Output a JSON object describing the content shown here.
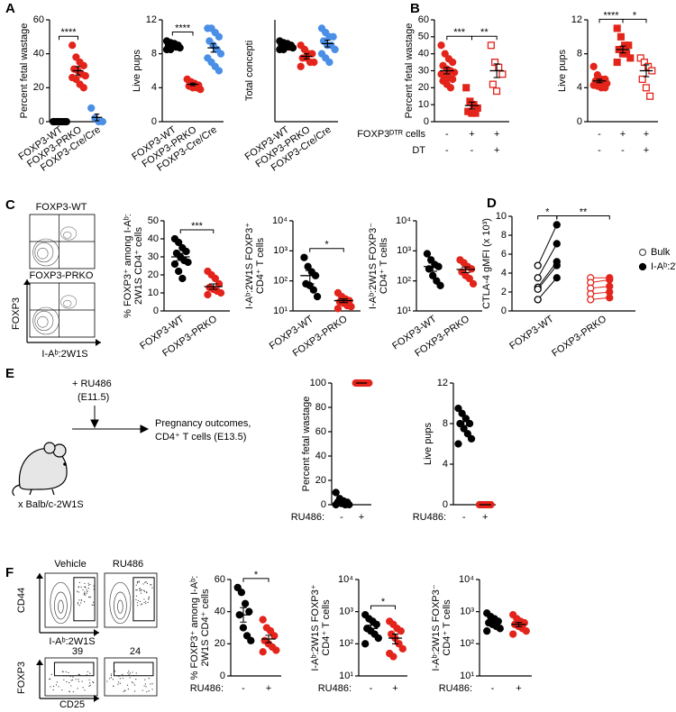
{
  "panel_letters": [
    "A",
    "B",
    "C",
    "D",
    "E",
    "F"
  ],
  "flow_c": {
    "titles": [
      "FOXP3-WT",
      "FOXP3-PRKO"
    ],
    "y_axis": "FOXP3",
    "x_axis": "I-Aᵇ:2W1S"
  },
  "schematic_e": {
    "treatment": "+ RU486",
    "treatment_time": "(E11.5)",
    "outcome": [
      "Pregnancy outcomes,",
      "CD4⁺ T cells (E13.5)"
    ],
    "cross": "x Balb/c-2W1S"
  },
  "flow_f": {
    "titles": [
      "Vehicle",
      "RU486"
    ],
    "top_y": "CD44",
    "top_x": "I-Aᵇ:2W1S",
    "bottom_y": "FOXP3",
    "bottom_x": "CD25",
    "gate_percents": [
      39,
      24
    ]
  },
  "chart_data": [
    {
      "type": "dot",
      "ylabel": [
        "Percent fetal wastage"
      ],
      "ylim": [
        0,
        60
      ],
      "yticks": [
        0,
        20,
        40,
        60
      ],
      "categories": [
        "FOXP3-WT",
        "FOXP3-PRKO",
        "FOXP3-Cre/Cre"
      ],
      "colors": [
        "#000000",
        "#e3241b",
        "#4a8fe7"
      ],
      "markers": [
        "circle",
        "circle",
        "circle"
      ],
      "values": [
        [
          0,
          0,
          0,
          0,
          0,
          0,
          0,
          0,
          0,
          0
        ],
        [
          45,
          38,
          35,
          33,
          31,
          30,
          28,
          27,
          26,
          25,
          22,
          20
        ],
        [
          8,
          2,
          0,
          0
        ]
      ],
      "means": [
        0,
        30,
        2.5
      ],
      "sems": [
        0,
        2.5,
        2
      ],
      "significance": [
        {
          "from": 0,
          "to": 1,
          "label": "****"
        }
      ]
    },
    {
      "type": "dot",
      "ylabel": [
        "Live pups"
      ],
      "ylim": [
        0,
        12
      ],
      "yticks": [
        0,
        4,
        8,
        12
      ],
      "categories": [
        "FOXP3-WT",
        "FOXP3-PRKO",
        "FOXP3-Cre/Cre"
      ],
      "colors": [
        "#000000",
        "#e3241b",
        "#4a8fe7"
      ],
      "markers": [
        "circle",
        "circle",
        "circle"
      ],
      "values": [
        [
          9.5,
          9.3,
          9.2,
          9,
          9,
          9,
          8.8,
          8.7,
          8.5,
          8.5
        ],
        [
          5,
          4.7,
          4.5,
          4.3,
          4.2,
          4,
          4,
          3.8
        ],
        [
          11,
          11,
          10.5,
          10,
          9.5,
          9,
          8.5,
          8,
          7.5,
          7,
          6.5,
          6
        ]
      ],
      "means": [
        9,
        4.4,
        8.7
      ],
      "sems": [
        0.1,
        0.15,
        0.5
      ],
      "significance": [
        {
          "from": 0,
          "to": 1,
          "label": "****"
        }
      ]
    },
    {
      "type": "dot",
      "ylabel": [
        "Total concepti"
      ],
      "ylim": [
        0,
        12
      ],
      "categories": [
        "FOXP3-WT",
        "FOXP3-PRKO",
        "FOXP3-Cre/Cre"
      ],
      "colors": [
        "#000000",
        "#e3241b",
        "#4a8fe7"
      ],
      "markers": [
        "circle",
        "circle",
        "circle"
      ],
      "values": [
        [
          9.5,
          9.3,
          9.2,
          9,
          9,
          9,
          8.8,
          8.7,
          8.5,
          8.5
        ],
        [
          9,
          8.5,
          8,
          8,
          7.5,
          7.5,
          7,
          7,
          6.5
        ],
        [
          11,
          10.5,
          10,
          10,
          9.5,
          9,
          9,
          8.5,
          8,
          7.5,
          7
        ]
      ],
      "means": [
        9,
        7.7,
        9.2
      ],
      "sems": [
        0.1,
        0.3,
        0.4
      ]
    },
    {
      "type": "dot",
      "ylabel": [
        "Percent fetal wastage"
      ],
      "ylim": [
        0,
        60
      ],
      "yticks": [
        0,
        10,
        20,
        30,
        40,
        50,
        60
      ],
      "x_rows": [
        {
          "label": "FOXP3ᴰᵀᴿ cells",
          "values": [
            "-",
            "+",
            "+"
          ]
        },
        {
          "label": "DT",
          "values": [
            "-",
            "-",
            "+"
          ]
        }
      ],
      "colors": [
        "#e3241b",
        "#e3241b",
        "#e3241b"
      ],
      "markers": [
        "circle",
        "square",
        "open-square"
      ],
      "values": [
        [
          45,
          40,
          37,
          35,
          33,
          31,
          30,
          29,
          28,
          27,
          26,
          25,
          24,
          22,
          20
        ],
        [
          20,
          12,
          10,
          8,
          6,
          5,
          5
        ],
        [
          45,
          35,
          32,
          28,
          22,
          18
        ]
      ],
      "means": [
        30,
        9.5,
        30
      ],
      "sems": [
        1.8,
        2,
        4
      ],
      "significance": [
        {
          "from": 0,
          "to": 1,
          "label": "***"
        },
        {
          "from": 1,
          "to": 2,
          "label": "**"
        }
      ]
    },
    {
      "type": "dot",
      "ylabel": [
        "Live pups"
      ],
      "ylim": [
        0,
        12
      ],
      "yticks": [
        0,
        4,
        8,
        12
      ],
      "x_rows": [
        {
          "values": [
            "-",
            "+",
            "+"
          ]
        },
        {
          "values": [
            "-",
            "-",
            "+"
          ]
        }
      ],
      "colors": [
        "#e3241b",
        "#e3241b",
        "#e3241b"
      ],
      "markers": [
        "circle",
        "square",
        "open-square"
      ],
      "values": [
        [
          6.5,
          5.5,
          5,
          5,
          4.8,
          4.7,
          4.5,
          4.5,
          4.3,
          4.2,
          4,
          4
        ],
        [
          11,
          10,
          9,
          9,
          8.5,
          8,
          8,
          7.5,
          7
        ],
        [
          7.5,
          7,
          6.5,
          6,
          5,
          4,
          3
        ]
      ],
      "means": [
        4.8,
        8.5,
        6
      ],
      "sems": [
        0.2,
        0.4,
        0.7
      ],
      "significance": [
        {
          "from": 0,
          "to": 1,
          "label": "****"
        },
        {
          "from": 1,
          "to": 2,
          "label": "*"
        }
      ]
    },
    {
      "type": "dot",
      "ylabel": [
        "% FOXP3⁺ among I-Aᵇ:",
        "2W1S CD4⁺ cells"
      ],
      "ylim": [
        0,
        50
      ],
      "yticks": [
        0,
        10,
        20,
        30,
        40,
        50
      ],
      "categories": [
        "FOXP3-WT",
        "FOXP3-PRKO"
      ],
      "colors": [
        "#000000",
        "#e3241b"
      ],
      "markers": [
        "circle",
        "circle"
      ],
      "values": [
        [
          40,
          38,
          35,
          33,
          32,
          30,
          28,
          27,
          26,
          22,
          18
        ],
        [
          22,
          20,
          18,
          15,
          13,
          12,
          11,
          10,
          9
        ]
      ],
      "means": [
        30,
        13.5
      ],
      "sems": [
        2,
        1.5
      ],
      "significance": [
        {
          "from": 0,
          "to": 1,
          "label": "***"
        }
      ]
    },
    {
      "type": "dot",
      "log": true,
      "ylabel": [
        "I-Aᵇ:2W1S FOXP3⁺",
        "CD4⁺ T cells"
      ],
      "ylim": [
        10,
        10000
      ],
      "yticks": [
        {
          "value": 10,
          "label": "10¹"
        },
        {
          "value": 100,
          "label": "10²"
        },
        {
          "value": 1000,
          "label": "10³"
        },
        {
          "value": 10000,
          "label": "10⁴"
        }
      ],
      "categories": [
        "FOXP3-WT",
        "FOXP3-PRKO"
      ],
      "colors": [
        "#000000",
        "#e3241b"
      ],
      "markers": [
        "circle",
        "circle"
      ],
      "values": [
        [
          600,
          300,
          200,
          150,
          80,
          70,
          50,
          30
        ],
        [
          40,
          30,
          25,
          22,
          20,
          18,
          15,
          14,
          12
        ]
      ],
      "means": [
        150,
        22
      ],
      "sems": [
        70,
        3
      ],
      "significance": [
        {
          "from": 0,
          "to": 1,
          "label": "*"
        }
      ]
    },
    {
      "type": "dot",
      "log": true,
      "ylabel": [
        "I-Aᵇ:2W1S FOXP3⁻",
        "CD4⁺ T cells"
      ],
      "ylim": [
        10,
        10000
      ],
      "yticks": [
        {
          "value": 10,
          "label": "10¹"
        },
        {
          "value": 100,
          "label": "10²"
        },
        {
          "value": 1000,
          "label": "10³"
        },
        {
          "value": 10000,
          "label": "10⁴"
        }
      ],
      "categories": [
        "FOXP3-WT",
        "FOXP3-PRKO"
      ],
      "colors": [
        "#000000",
        "#e3241b"
      ],
      "markers": [
        "circle",
        "circle"
      ],
      "values": [
        [
          800,
          500,
          350,
          300,
          250,
          150,
          100,
          70
        ],
        [
          500,
          400,
          300,
          250,
          200,
          150,
          120,
          80
        ]
      ],
      "means": [
        300,
        240
      ],
      "sems": [
        90,
        50
      ]
    },
    {
      "type": "paired",
      "ylabel": [
        "CTLA-4 gMFI (x 10³)"
      ],
      "ylim": [
        0,
        10
      ],
      "yticks": [
        0,
        2,
        4,
        6,
        8,
        10
      ],
      "categories": [
        "FOXP3-WT",
        "FOXP3-PRKO"
      ],
      "colors": [
        "#000000",
        "#e3241b"
      ],
      "series": [
        {
          "name": "Bulk",
          "marker": "open-circle",
          "values": [
            [
              4.8,
              3.5,
              2.5,
              2.3,
              1.2
            ],
            [
              3.5,
              3.0,
              2.4,
              1.8,
              1.2
            ]
          ]
        },
        {
          "name": "I-Aᵇ:2W1S",
          "marker": "circle",
          "values": [
            [
              9.1,
              7.1,
              5.2,
              4.8,
              3.5
            ],
            [
              3.5,
              3.3,
              2.6,
              2.0,
              1.4
            ]
          ]
        }
      ],
      "significance": [
        {
          "from": 0,
          "to": 1,
          "label": "*"
        },
        {
          "from": 1,
          "to": 3,
          "label": "**"
        }
      ]
    },
    {
      "type": "dot",
      "ylabel": [
        "Percent fetal wastage"
      ],
      "ylim": [
        0,
        100
      ],
      "yticks": [
        0,
        20,
        40,
        60,
        80,
        100
      ],
      "xlabel": "RU486:",
      "categories": [
        "-",
        "+"
      ],
      "colors": [
        "#000000",
        "#e3241b"
      ],
      "markers": [
        "circle",
        "circle"
      ],
      "values": [
        [
          10,
          5,
          3,
          2,
          2,
          1,
          0,
          0,
          0
        ],
        [
          100,
          100,
          100,
          100,
          100,
          100,
          100,
          100
        ]
      ],
      "means": [
        3,
        100
      ],
      "sems": [
        1.2,
        0
      ]
    },
    {
      "type": "dot",
      "ylabel": [
        "Live pups"
      ],
      "ylim": [
        0,
        12
      ],
      "yticks": [
        0,
        4,
        8,
        12
      ],
      "xlabel": "RU486:",
      "categories": [
        "-",
        "+"
      ],
      "colors": [
        "#000000",
        "#e3241b"
      ],
      "markers": [
        "circle",
        "circle"
      ],
      "values": [
        [
          9.5,
          9,
          8.5,
          8,
          8,
          7.5,
          7,
          6.5,
          6
        ],
        [
          0,
          0,
          0,
          0,
          0,
          0,
          0
        ]
      ],
      "means": [
        7.8,
        0
      ],
      "sems": [
        0.4,
        0
      ]
    },
    {
      "type": "dot",
      "ylabel": [
        "% FOXP3⁺ among I-Aᵇ:",
        "2W1S CD4⁺ cells"
      ],
      "ylim": [
        0,
        60
      ],
      "yticks": [
        0,
        20,
        40,
        60
      ],
      "xlabel": "RU486:",
      "categories": [
        "-",
        "+"
      ],
      "colors": [
        "#000000",
        "#e3241b"
      ],
      "markers": [
        "circle",
        "circle"
      ],
      "values": [
        [
          55,
          52,
          45,
          40,
          38,
          30,
          25,
          22
        ],
        [
          35,
          30,
          28,
          25,
          22,
          20,
          18,
          16,
          15
        ]
      ],
      "means": [
        38,
        23
      ],
      "sems": [
        4.5,
        2.3
      ],
      "significance": [
        {
          "from": 0,
          "to": 1,
          "label": "*"
        }
      ]
    },
    {
      "type": "dot",
      "log": true,
      "ylabel": [
        "I-Aᵇ:2W1S FOXP3⁺",
        "CD4⁺ T cells"
      ],
      "ylim": [
        10,
        10000
      ],
      "yticks": [
        {
          "value": 10,
          "label": "10¹"
        },
        {
          "value": 100,
          "label": "10²"
        },
        {
          "value": 1000,
          "label": "10³"
        },
        {
          "value": 10000,
          "label": "10⁴"
        }
      ],
      "xlabel": "RU486:",
      "categories": [
        "-",
        "+"
      ],
      "colors": [
        "#000000",
        "#e3241b"
      ],
      "markers": [
        "circle",
        "circle"
      ],
      "values": [
        [
          800,
          600,
          500,
          400,
          300,
          250,
          200,
          150,
          100
        ],
        [
          500,
          400,
          300,
          250,
          200,
          150,
          100,
          70,
          50,
          40
        ]
      ],
      "means": [
        300,
        150
      ],
      "sems": [
        80,
        50
      ],
      "significance": [
        {
          "from": 0,
          "to": 1,
          "label": "*"
        }
      ]
    },
    {
      "type": "dot",
      "log": true,
      "ylabel": [
        "I-Aᵇ:2W1S FOXP3⁻",
        "CD4⁺ T cells"
      ],
      "ylim": [
        10,
        10000
      ],
      "yticks": [
        {
          "value": 10,
          "label": "10¹"
        },
        {
          "value": 100,
          "label": "10²"
        },
        {
          "value": 1000,
          "label": "10³"
        },
        {
          "value": 10000,
          "label": "10⁴"
        }
      ],
      "xlabel": "RU486:",
      "categories": [
        "-",
        "+"
      ],
      "colors": [
        "#000000",
        "#e3241b"
      ],
      "markers": [
        "circle",
        "circle"
      ],
      "values": [
        [
          900,
          700,
          600,
          500,
          450,
          400,
          350,
          300,
          250
        ],
        [
          800,
          600,
          500,
          450,
          400,
          350,
          300,
          250,
          200
        ]
      ],
      "means": [
        480,
        400
      ],
      "sems": [
        60,
        60
      ]
    }
  ]
}
